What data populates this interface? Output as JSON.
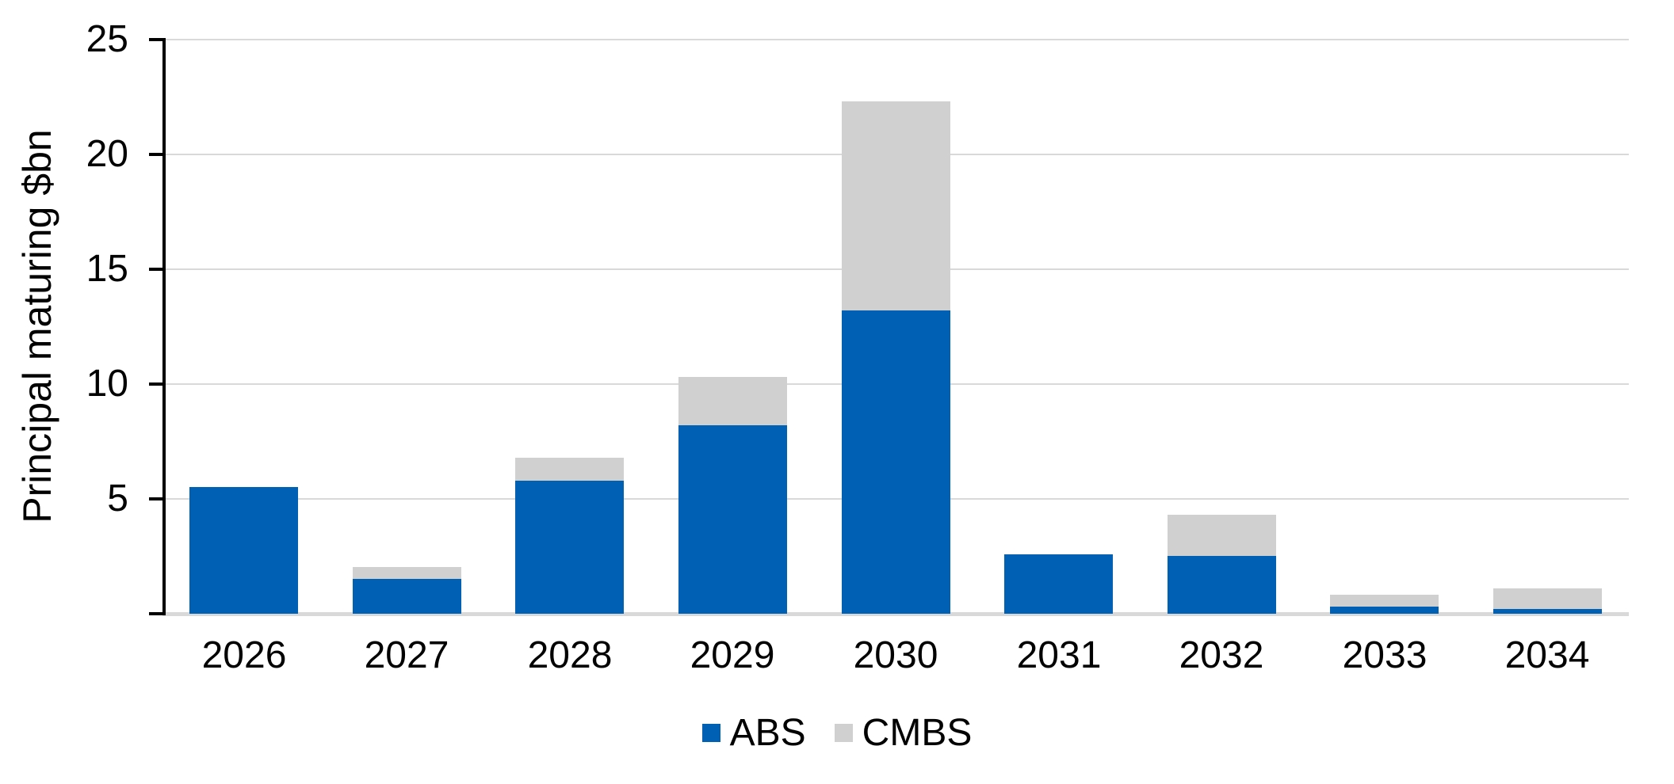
{
  "chart_data": {
    "type": "bar",
    "stacked": true,
    "title": "",
    "xlabel": "",
    "ylabel": "Principal maturing $bn",
    "categories": [
      "2026",
      "2027",
      "2028",
      "2029",
      "2030",
      "2031",
      "2032",
      "2033",
      "2034"
    ],
    "series": [
      {
        "name": "ABS",
        "color": "#0060B4",
        "values": [
          5.5,
          1.5,
          5.8,
          8.2,
          13.2,
          2.6,
          2.5,
          0.3,
          0.2
        ]
      },
      {
        "name": "CMBS",
        "color": "#D0D0D0",
        "values": [
          0,
          0.5,
          1.0,
          2.1,
          9.1,
          0,
          1.8,
          0.5,
          0.9
        ]
      }
    ],
    "ylim": [
      0,
      25
    ],
    "yticks": [
      5,
      10,
      15,
      20,
      25
    ],
    "grid": true,
    "gridline_color": "#D9D9D9",
    "axis_color": "#000000",
    "legend_position": "bottom-center"
  }
}
